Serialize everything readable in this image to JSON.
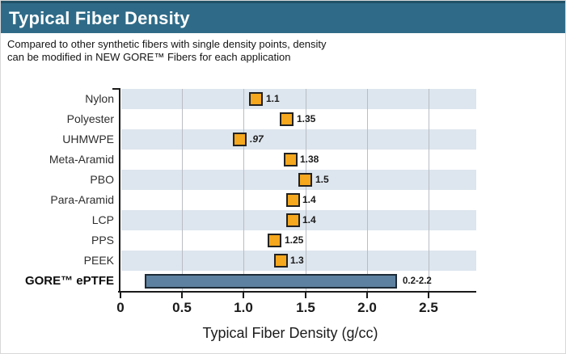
{
  "header": {
    "title": "Typical Fiber Density",
    "bg_color": "#2f6b88",
    "top_edge_color": "#215167",
    "text_color": "#ffffff"
  },
  "subtitle": {
    "lines": [
      "Compared to other synthetic fibers with single density points, density",
      "can be modified in NEW GORE™ Fibers for each application"
    ]
  },
  "chart_data": {
    "type": "scatter",
    "orientation": "horizontal",
    "title": "Typical Fiber Density",
    "xlabel": "Typical Fiber Density (g/cc)",
    "ylabel": "",
    "xlim": [
      0,
      2.89
    ],
    "grid": true,
    "row_band_color": "#dde5ee",
    "grid_color": "#b9bdc2",
    "marker_color": "#f5a71d",
    "marker_border_color": "#222222",
    "bar_color": "#5d81a0",
    "bar_border_color": "#1d2b38",
    "categories": [
      "Nylon",
      "Polyester",
      "UHMWPE",
      "Meta-Aramid",
      "PBO",
      "Para-Aramid",
      "LCP",
      "PPS",
      "PEEK",
      "GORE™ ePTFE"
    ],
    "points": [
      {
        "category": "Nylon",
        "value": 1.1,
        "label": "1.1",
        "italic": false
      },
      {
        "category": "Polyester",
        "value": 1.35,
        "label": "1.35",
        "italic": false
      },
      {
        "category": "UHMWPE",
        "value": 0.97,
        "label": ".97",
        "italic": true
      },
      {
        "category": "Meta-Aramid",
        "value": 1.38,
        "label": "1.38",
        "italic": false
      },
      {
        "category": "PBO",
        "value": 1.5,
        "label": "1.5",
        "italic": false
      },
      {
        "category": "Para-Aramid",
        "value": 1.4,
        "label": "1.4",
        "italic": false
      },
      {
        "category": "LCP",
        "value": 1.4,
        "label": "1.4",
        "italic": false
      },
      {
        "category": "PPS",
        "value": 1.25,
        "label": "1.25",
        "italic": false
      },
      {
        "category": "PEEK",
        "value": 1.3,
        "label": "1.3",
        "italic": false
      }
    ],
    "range_bar": {
      "category": "GORE™ ePTFE",
      "from": 0.2,
      "to": 2.25,
      "label": "0.2-2.2"
    },
    "x_ticks": [
      {
        "v": 0,
        "label": "0"
      },
      {
        "v": 0.5,
        "label": "0.5"
      },
      {
        "v": 1.0,
        "label": "1.0"
      },
      {
        "v": 1.5,
        "label": "1.5"
      },
      {
        "v": 2.0,
        "label": "2.0"
      },
      {
        "v": 2.5,
        "label": "2.5"
      }
    ]
  }
}
